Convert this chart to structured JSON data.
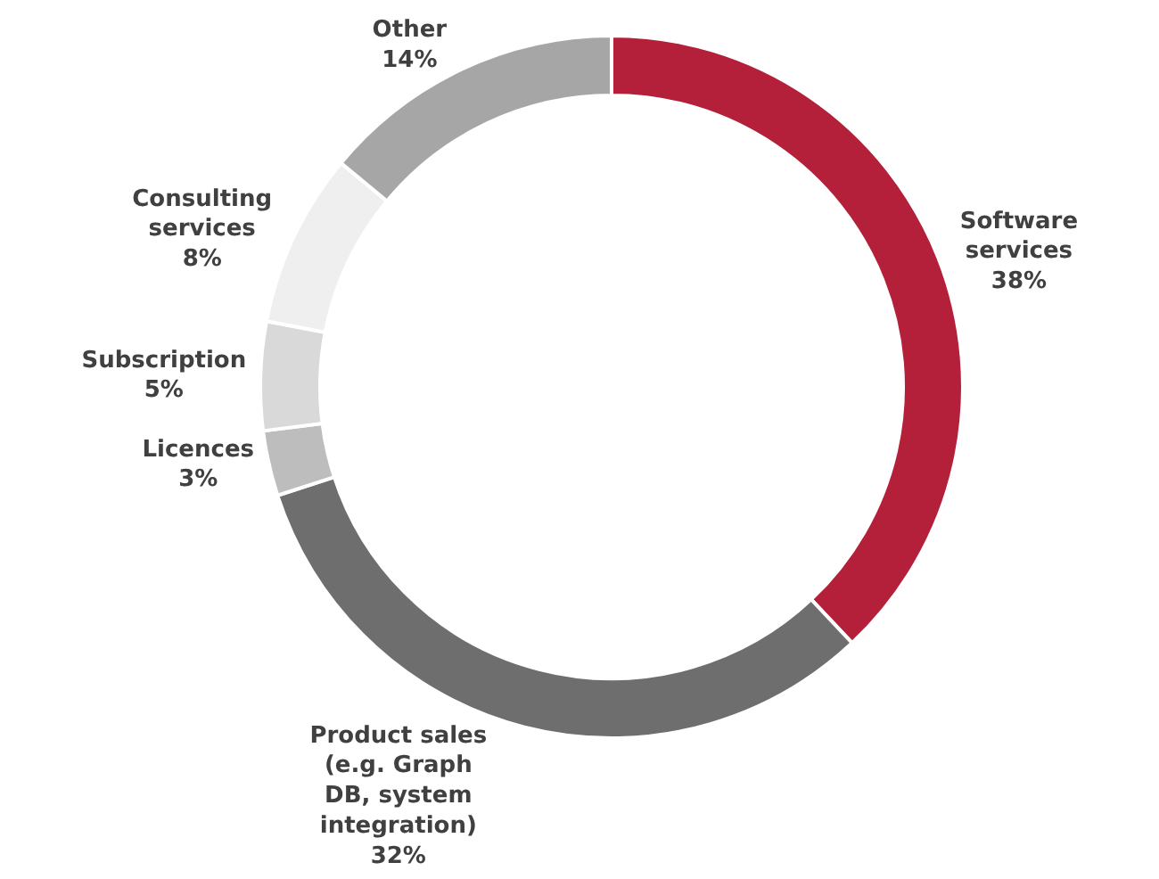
{
  "chart_data": {
    "type": "donut",
    "categories": [
      "Software services",
      "Product sales (e.g. Graph DB, system integration)",
      "Licences",
      "Subscription",
      "Consulting services",
      "Other"
    ],
    "values": [
      38,
      32,
      3,
      5,
      8,
      14
    ],
    "value_labels": [
      "38%",
      "32%",
      "3%",
      "5%",
      "8%",
      "14%"
    ],
    "colors": [
      "#b41f3a",
      "#6e6e6e",
      "#bdbdbd",
      "#d9d9d9",
      "#efefef",
      "#a6a6a6"
    ],
    "legend": false
  }
}
